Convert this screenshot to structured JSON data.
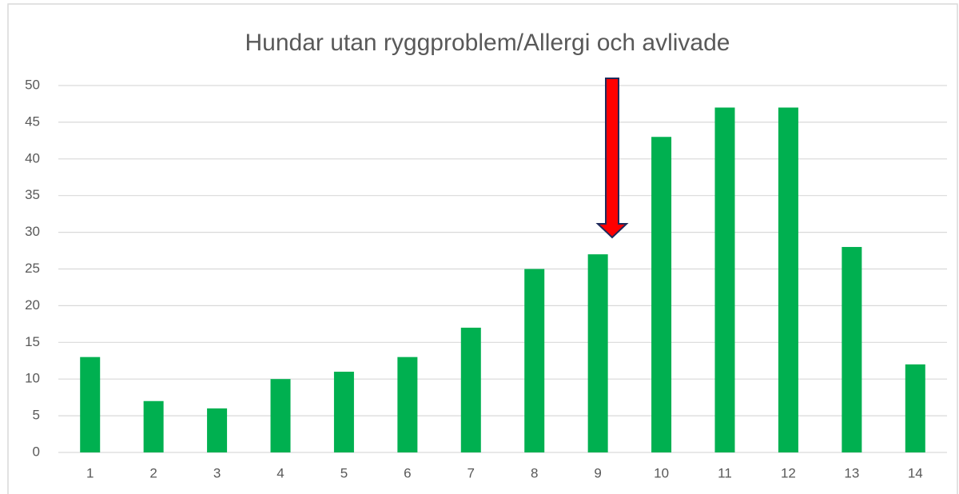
{
  "chart_data": {
    "type": "bar",
    "title": "Hundar utan ryggproblem/Allergi och avlivade",
    "categories": [
      "1",
      "2",
      "3",
      "4",
      "5",
      "6",
      "7",
      "8",
      "9",
      "10",
      "11",
      "12",
      "13",
      "14"
    ],
    "values": [
      13,
      7,
      6,
      10,
      11,
      13,
      17,
      25,
      27,
      43,
      47,
      47,
      28,
      12
    ],
    "color": "#00b050",
    "ylim": [
      0,
      50
    ],
    "yticks": [
      0,
      5,
      10,
      15,
      20,
      25,
      30,
      35,
      40,
      45,
      50
    ],
    "grid": true
  }
}
